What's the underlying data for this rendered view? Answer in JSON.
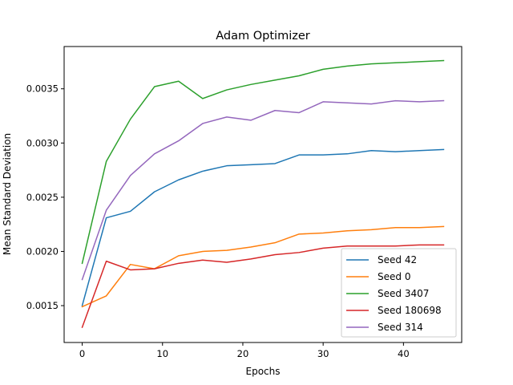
{
  "chart_data": {
    "type": "line",
    "title": "Adam Optimizer",
    "xlabel": "Epochs",
    "ylabel": "Mean Standard Deviation",
    "xlim": [
      -2.25,
      47.25
    ],
    "ylim": [
      0.00116,
      0.00389
    ],
    "xticks": [
      0,
      10,
      20,
      30,
      40
    ],
    "xtick_labels": [
      "0",
      "10",
      "20",
      "30",
      "40"
    ],
    "yticks": [
      0.0015,
      0.002,
      0.0025,
      0.003,
      0.0035
    ],
    "ytick_labels": [
      "0.0015",
      "0.0020",
      "0.0025",
      "0.0030",
      "0.0035"
    ],
    "grid": false,
    "legend_position": "lower-right",
    "x": [
      0,
      3,
      6,
      9,
      12,
      15,
      18,
      21,
      24,
      27,
      30,
      33,
      36,
      39,
      42,
      45
    ],
    "series": [
      {
        "name": "Seed 42",
        "color": "#1f77b4",
        "values": [
          0.0015,
          0.00231,
          0.00237,
          0.00255,
          0.00266,
          0.00274,
          0.00279,
          0.0028,
          0.00281,
          0.00289,
          0.00289,
          0.0029,
          0.00293,
          0.00292,
          0.00293,
          0.00294
        ]
      },
      {
        "name": "Seed 0",
        "color": "#ff7f0e",
        "values": [
          0.00149,
          0.00159,
          0.00188,
          0.00184,
          0.00196,
          0.002,
          0.00201,
          0.00204,
          0.00208,
          0.00216,
          0.00217,
          0.00219,
          0.0022,
          0.00222,
          0.00222,
          0.00223
        ]
      },
      {
        "name": "Seed 3407",
        "color": "#2ca02c",
        "values": [
          0.00189,
          0.00283,
          0.00322,
          0.00352,
          0.00357,
          0.00341,
          0.00349,
          0.00354,
          0.00358,
          0.00362,
          0.00368,
          0.00371,
          0.00373,
          0.00374,
          0.00375,
          0.00376
        ]
      },
      {
        "name": "Seed 180698",
        "color": "#d62728",
        "values": [
          0.0013,
          0.00191,
          0.00183,
          0.00184,
          0.00189,
          0.00192,
          0.0019,
          0.00193,
          0.00197,
          0.00199,
          0.00203,
          0.00205,
          0.00205,
          0.00205,
          0.00206,
          0.00206
        ]
      },
      {
        "name": "Seed 314",
        "color": "#9467bd",
        "values": [
          0.00174,
          0.00238,
          0.0027,
          0.0029,
          0.00302,
          0.00318,
          0.00324,
          0.00321,
          0.0033,
          0.00328,
          0.00338,
          0.00337,
          0.00336,
          0.00339,
          0.00338,
          0.00339
        ]
      }
    ]
  }
}
